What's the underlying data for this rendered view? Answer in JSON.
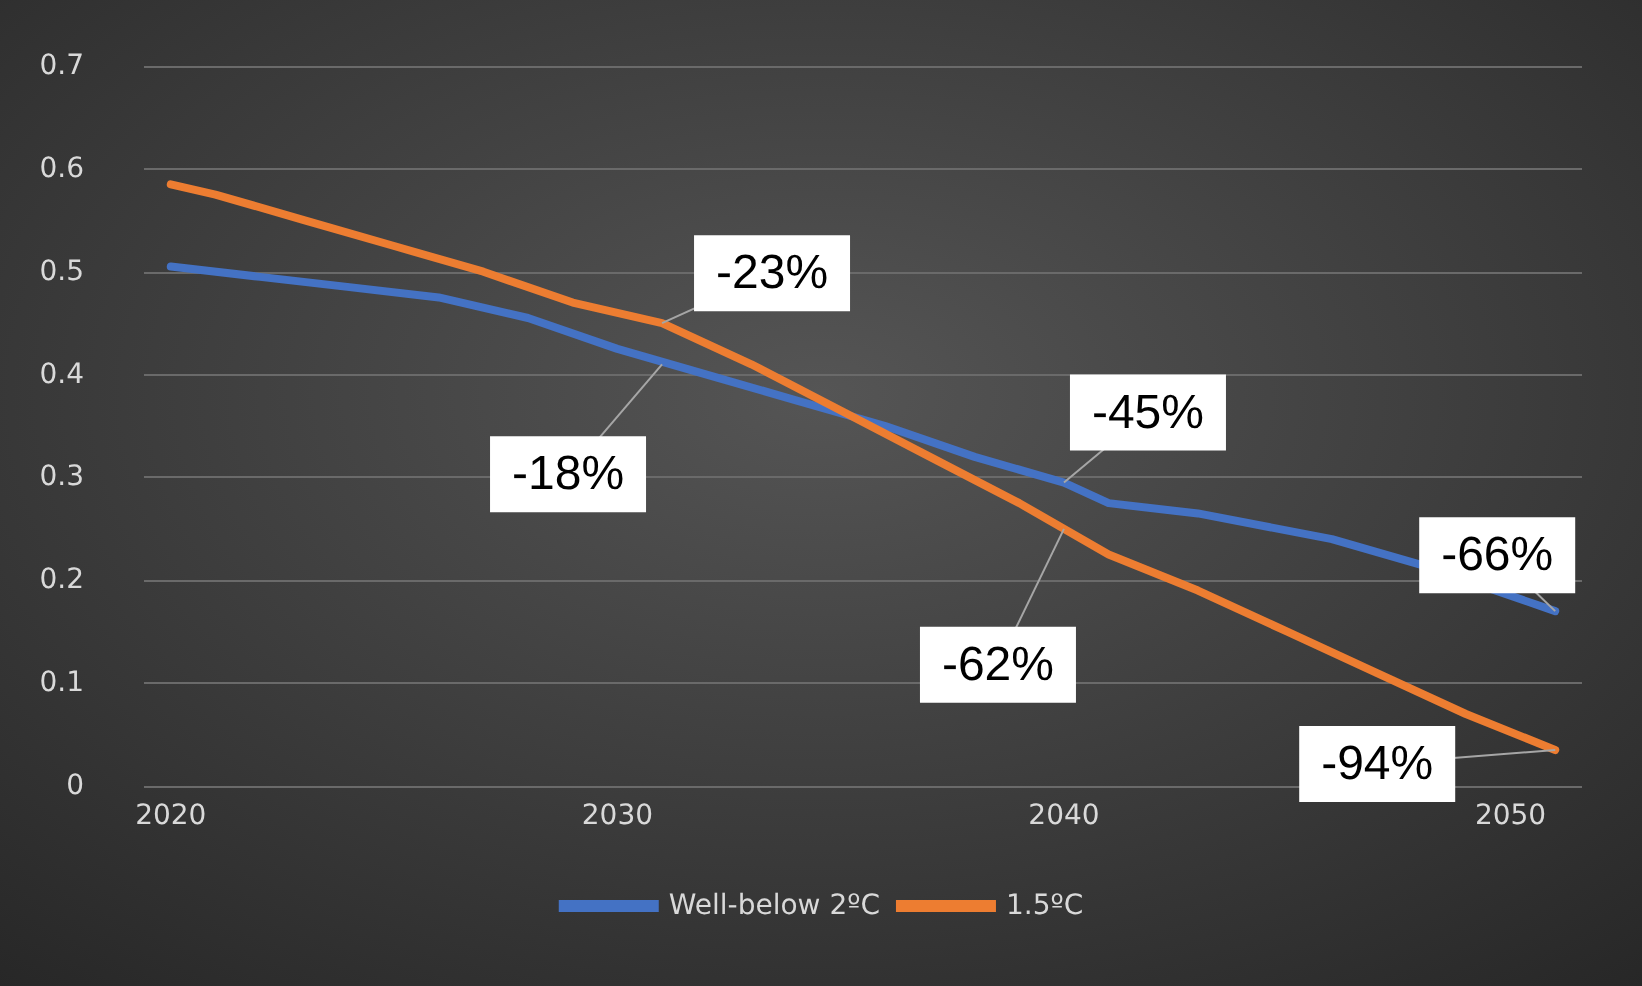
{
  "chart_data": {
    "type": "line",
    "xlim": [
      2019.4,
      2051.6
    ],
    "xticks": [
      2020,
      2030,
      2040,
      2050
    ],
    "ylim": [
      0,
      0.7
    ],
    "yticks": [
      0,
      0.1,
      0.2,
      0.3,
      0.4,
      0.5,
      0.6,
      0.7
    ],
    "grid": "y",
    "legend": "bottom",
    "marker": "none",
    "line_style": "solid",
    "series": [
      {
        "name": "Well-below 2ºC",
        "color": "#4472c4",
        "x": [
          2020,
          2022,
          2024,
          2026,
          2028,
          2030,
          2032,
          2034,
          2036,
          2038,
          2040,
          2041,
          2043,
          2046,
          2048,
          2051
        ],
        "values": [
          0.505,
          0.495,
          0.485,
          0.475,
          0.455,
          0.425,
          0.4,
          0.375,
          0.35,
          0.32,
          0.295,
          0.275,
          0.265,
          0.24,
          0.215,
          0.17
        ]
      },
      {
        "name": "1.5ºC",
        "color": "#ed7d31",
        "x": [
          2020,
          2021,
          2023,
          2025,
          2027,
          2029,
          2031,
          2033,
          2035,
          2037,
          2039,
          2041,
          2043,
          2045,
          2047,
          2049,
          2051
        ],
        "values": [
          0.585,
          0.575,
          0.55,
          0.525,
          0.5,
          0.47,
          0.45,
          0.41,
          0.365,
          0.32,
          0.275,
          0.225,
          0.19,
          0.15,
          0.11,
          0.07,
          0.035
        ]
      }
    ],
    "annotations": [
      {
        "text": "-23%",
        "x": 2031,
        "y": 0.45
      },
      {
        "text": "-18%",
        "x": 2031,
        "y": 0.41
      },
      {
        "text": "-45%",
        "x": 2040,
        "y": 0.295
      },
      {
        "text": "-62%",
        "x": 2040,
        "y": 0.25
      },
      {
        "text": "-66%",
        "x": 2051,
        "y": 0.17
      },
      {
        "text": "-94%",
        "x": 2051,
        "y": 0.035
      }
    ]
  }
}
